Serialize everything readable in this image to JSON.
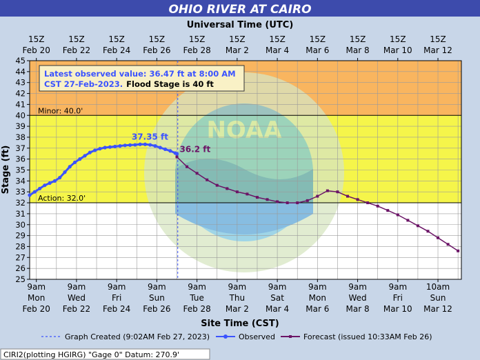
{
  "chart_data": {
    "type": "line",
    "title": "OHIO RIVER AT CAIRO",
    "top_axis_title": "Universal Time (UTC)",
    "top_ticks": [
      [
        "15Z",
        "Feb 20"
      ],
      [
        "15Z",
        "Feb 22"
      ],
      [
        "15Z",
        "Feb 24"
      ],
      [
        "15Z",
        "Feb 26"
      ],
      [
        "15Z",
        "Feb 28"
      ],
      [
        "15Z",
        "Mar  2"
      ],
      [
        "15Z",
        "Mar  4"
      ],
      [
        "15Z",
        "Mar  6"
      ],
      [
        "15Z",
        "Mar  8"
      ],
      [
        "15Z",
        "Mar 10"
      ],
      [
        "15Z",
        "Mar 12"
      ]
    ],
    "bottom_ticks": [
      [
        "9am",
        "Mon",
        "Feb 20"
      ],
      [
        "9am",
        "Wed",
        "Feb 22"
      ],
      [
        "9am",
        "Fri",
        "Feb 24"
      ],
      [
        "9am",
        "Sun",
        "Feb 26"
      ],
      [
        "9am",
        "Tue",
        "Feb 28"
      ],
      [
        "9am",
        "Thu",
        "Mar 2"
      ],
      [
        "9am",
        "Sat",
        "Mar 4"
      ],
      [
        "9am",
        "Mon",
        "Mar 6"
      ],
      [
        "9am",
        "Wed",
        "Mar 8"
      ],
      [
        "9am",
        "Fri",
        "Mar 10"
      ],
      [
        "10am",
        "Sun",
        "Mar 12"
      ]
    ],
    "xlabel": "Site Time (CST)",
    "ylabel": "Stage (ft)",
    "ylim": [
      25,
      45
    ],
    "xlim": [
      "2023-02-20 00:00",
      "2023-03-13 12:00"
    ],
    "y_ticks": [
      25,
      26,
      27,
      28,
      29,
      30,
      31,
      32,
      33,
      34,
      35,
      36,
      37,
      38,
      39,
      40,
      41,
      42,
      43,
      44,
      45
    ],
    "grid": true,
    "flood_categories": [
      {
        "name": "Minor",
        "label": "Minor: 40.0'",
        "from": 40,
        "to": 45,
        "color": "#f9b55f"
      },
      {
        "name": "Action",
        "label": "Action: 32.0'",
        "from": 32,
        "to": 40,
        "color": "#f5f54a"
      }
    ],
    "info_box": {
      "line1": "Latest observed value: 36.47 ft at 8:00 AM",
      "line2_a": "CST 27-Feb-2023.",
      "line2_b": "Flood Stage is 40 ft"
    },
    "annotations": {
      "crest": {
        "text": "37.35 ft",
        "x": "2023-02-26 08:00",
        "y": 37.35
      },
      "forecast_start": {
        "text": "36.2 ft",
        "x": "2023-02-27 08:00",
        "y": 36.2
      }
    },
    "graph_created": "2023-02-27 09:02",
    "series": [
      {
        "name": "Observed",
        "color": "#3b53ff",
        "x": [
          "2023-02-20 00:00",
          "2023-02-20 06:00",
          "2023-02-20 12:00",
          "2023-02-20 18:00",
          "2023-02-21 00:00",
          "2023-02-21 06:00",
          "2023-02-21 12:00",
          "2023-02-21 18:00",
          "2023-02-22 00:00",
          "2023-02-22 06:00",
          "2023-02-22 12:00",
          "2023-02-22 18:00",
          "2023-02-23 00:00",
          "2023-02-23 06:00",
          "2023-02-23 12:00",
          "2023-02-23 18:00",
          "2023-02-24 00:00",
          "2023-02-24 06:00",
          "2023-02-24 12:00",
          "2023-02-24 18:00",
          "2023-02-25 00:00",
          "2023-02-25 06:00",
          "2023-02-25 12:00",
          "2023-02-25 18:00",
          "2023-02-26 00:00",
          "2023-02-26 06:00",
          "2023-02-26 12:00",
          "2023-02-26 18:00",
          "2023-02-27 00:00",
          "2023-02-27 06:00",
          "2023-02-27 08:00"
        ],
        "values": [
          32.7,
          33.0,
          33.3,
          33.6,
          33.8,
          34.0,
          34.3,
          34.8,
          35.3,
          35.7,
          36.0,
          36.3,
          36.6,
          36.8,
          36.95,
          37.05,
          37.1,
          37.15,
          37.2,
          37.25,
          37.28,
          37.3,
          37.35,
          37.35,
          37.3,
          37.2,
          37.05,
          36.9,
          36.75,
          36.55,
          36.47
        ]
      },
      {
        "name": "Forecast (issued 10:33AM Feb 26)",
        "color": "#6b1466",
        "x": [
          "2023-02-27 08:00",
          "2023-02-27 20:00",
          "2023-02-28 08:00",
          "2023-02-28 20:00",
          "2023-03-01 08:00",
          "2023-03-01 20:00",
          "2023-03-02 08:00",
          "2023-03-02 20:00",
          "2023-03-03 08:00",
          "2023-03-03 20:00",
          "2023-03-04 08:00",
          "2023-03-04 20:00",
          "2023-03-05 08:00",
          "2023-03-05 20:00",
          "2023-03-06 08:00",
          "2023-03-06 20:00",
          "2023-03-07 08:00",
          "2023-03-07 20:00",
          "2023-03-08 08:00",
          "2023-03-08 20:00",
          "2023-03-09 08:00",
          "2023-03-09 20:00",
          "2023-03-10 08:00",
          "2023-03-10 20:00",
          "2023-03-11 08:00",
          "2023-03-11 20:00",
          "2023-03-12 08:00",
          "2023-03-12 20:00",
          "2023-03-13 08:00"
        ],
        "values": [
          36.2,
          35.3,
          34.7,
          34.1,
          33.6,
          33.3,
          33.0,
          32.8,
          32.5,
          32.3,
          32.1,
          32.0,
          32.0,
          32.2,
          32.6,
          33.1,
          33.0,
          32.6,
          32.3,
          32.0,
          31.7,
          31.3,
          30.9,
          30.4,
          29.9,
          29.4,
          28.8,
          28.2,
          27.6
        ]
      }
    ],
    "legend": {
      "graph_created": "Graph Created (9:02AM Feb 27, 2023)",
      "observed": "Observed",
      "forecast": "Forecast (issued 10:33AM Feb 26)"
    },
    "footer": "CIRI2(plotting HGIRG) \"Gage 0\" Datum:  270.9'"
  }
}
